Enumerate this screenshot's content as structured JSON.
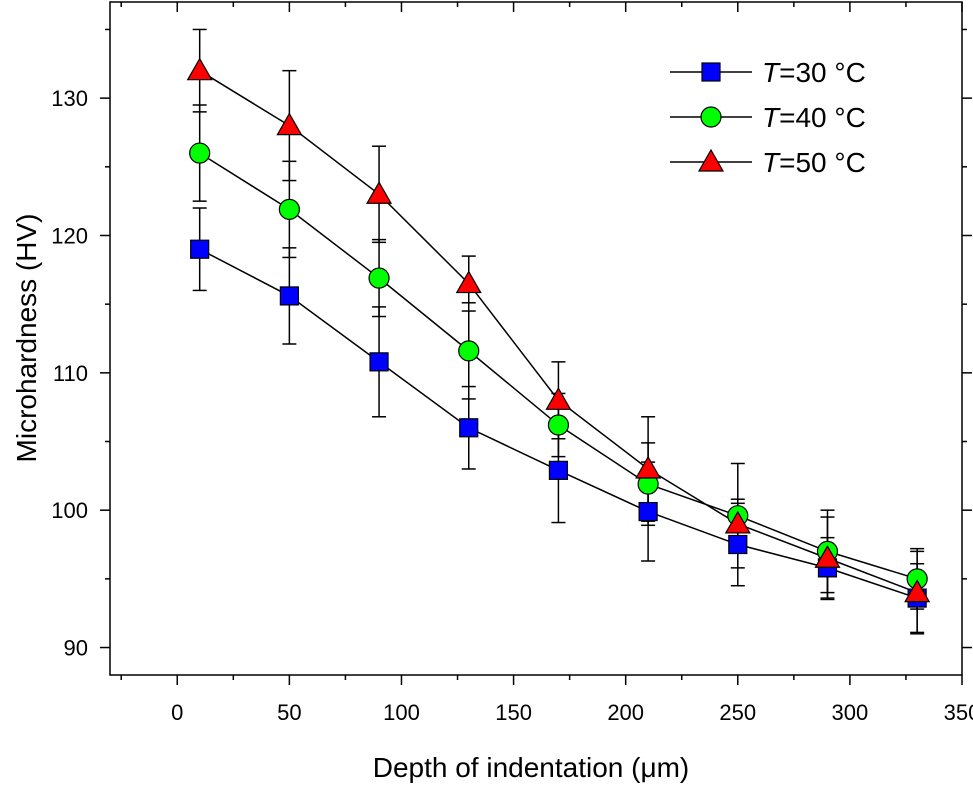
{
  "chart_data": {
    "type": "line",
    "title": "",
    "xlabel": "Depth of indentation (μm)",
    "ylabel": "Microhardness (HV)",
    "xlim": [
      -30,
      350
    ],
    "ylim": [
      88,
      137
    ],
    "x_ticks": [
      0,
      50,
      100,
      150,
      200,
      250,
      300,
      350
    ],
    "y_ticks": [
      90,
      100,
      110,
      120,
      130
    ],
    "x_tick_labels": [
      "0",
      "50",
      "100",
      "150",
      "200",
      "250",
      "300",
      "350"
    ],
    "y_tick_labels": [
      "90",
      "100",
      "110",
      "120",
      "130"
    ],
    "grid": false,
    "legend_position": "top-right",
    "x": [
      10,
      50,
      90,
      130,
      170,
      210,
      250,
      290,
      330
    ],
    "series": [
      {
        "name": "=30 °C",
        "legend_prefix": "T",
        "marker": "square",
        "color": "#0000ff",
        "values": [
          119,
          115.6,
          110.8,
          106,
          102.9,
          99.9,
          97.5,
          95.8,
          93.6
        ],
        "errors": [
          3,
          3.5,
          4,
          3,
          3.8,
          3.6,
          3,
          2.2,
          2.5
        ]
      },
      {
        "name": "=40 °C",
        "legend_prefix": "T",
        "marker": "circle",
        "color": "#00ff00",
        "values": [
          126,
          121.9,
          116.9,
          111.6,
          106.2,
          101.9,
          99.6,
          97,
          95
        ],
        "errors": [
          3.5,
          3.5,
          2.8,
          3.5,
          2.3,
          3,
          3.8,
          3,
          2.2
        ]
      },
      {
        "name": "=50 °C",
        "legend_prefix": "T",
        "marker": "triangle",
        "color": "#ff0000",
        "values": [
          132,
          128,
          123,
          116.5,
          108,
          103,
          99,
          96.5,
          94
        ],
        "errors": [
          3,
          4,
          3.5,
          2,
          2.8,
          3.8,
          1.8,
          3,
          3
        ]
      }
    ]
  }
}
